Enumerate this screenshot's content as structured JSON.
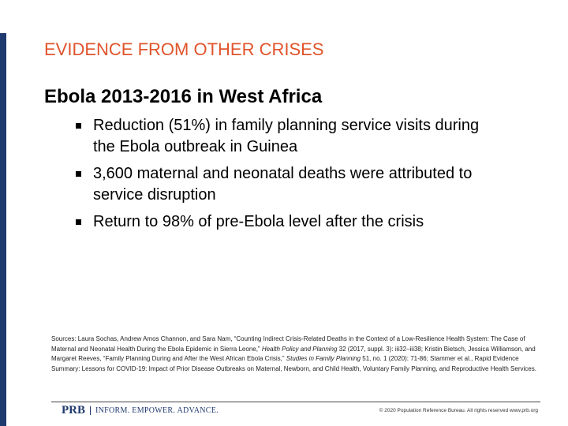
{
  "header": {
    "title": "EVIDENCE FROM OTHER CRISES"
  },
  "section": {
    "heading": "Ebola 2013-2016 in West Africa",
    "bullets": [
      "Reduction (51%) in family planning service visits during the Ebola outbreak in Guinea",
      "3,600 maternal and neonatal deaths were attributed to service disruption",
      "Return to 98% of pre-Ebola level after the crisis"
    ]
  },
  "sources": [
    {
      "text": "Sources: Laura Sochas, Andrew Amos Channon, and Sara Nam, “Counting Indirect Crisis-Related Deaths in the Context of a Low-Resilience Health System: The Case of Maternal and Neonatal Health During the Ebola Epidemic in Sierra Leone,” ",
      "italic": false
    },
    {
      "text": "Health Policy and Planning",
      "italic": true
    },
    {
      "text": " 32 (2017, suppl. 3): iii32–iii38; Kristin Bietsch, Jessica Williamson, and Margaret Reeves, “Family Planning During and After the West African Ebola Crisis,” ",
      "italic": false
    },
    {
      "text": "Studies in Family Planning",
      "italic": true
    },
    {
      "text": " 51, no. 1 (2020): 71-86; Stammer et al., Rapid Evidence Summary: Lessons for COVID-19: Impact of Prior Disease Outbreaks on Maternal, Newborn, and Child Health, Voluntary Family Planning, and Reproductive Health Services.",
      "italic": false
    }
  ],
  "footer": {
    "logo": "PRB",
    "tagline": "INFORM. EMPOWER. ADVANCE.",
    "copyright": "© 2020 Population Reference Bureau. All rights reserved www.prb.org"
  }
}
